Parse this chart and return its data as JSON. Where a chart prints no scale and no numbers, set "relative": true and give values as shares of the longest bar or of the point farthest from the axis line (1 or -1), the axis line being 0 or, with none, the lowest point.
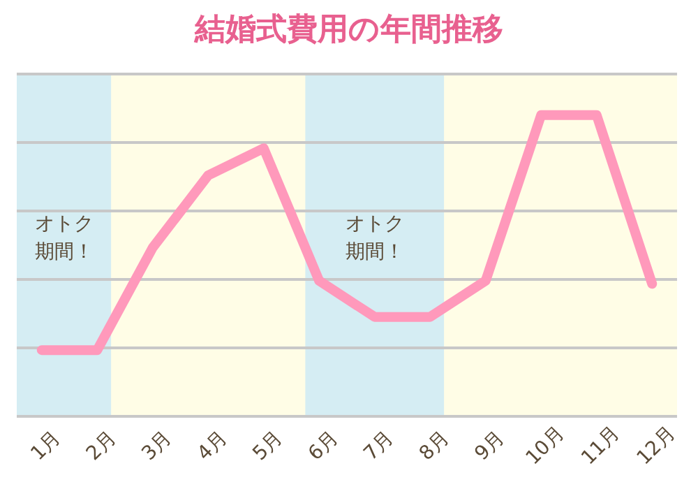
{
  "chart_data": {
    "type": "line",
    "title": "結婚式費用の年間推移",
    "categories": [
      "1月",
      "2月",
      "3月",
      "4月",
      "5月",
      "6月",
      "7月",
      "8月",
      "9月",
      "10月",
      "11月",
      "12月"
    ],
    "relative": true,
    "series": [
      {
        "color": "#ff99bb",
        "values": [
          0.22,
          0.22,
          0.56,
          0.8,
          0.89,
          0.45,
          0.33,
          0.33,
          0.45,
          1,
          1,
          0.44
        ]
      }
    ],
    "bands": [
      {
        "axis": "x",
        "from": "1月",
        "to": "2月",
        "label": "オトク期間！",
        "color": "#d5edf3"
      },
      {
        "axis": "x",
        "from": "6月",
        "to": "8月",
        "label": "オトク期間！",
        "color": "#d5edf3"
      }
    ],
    "grid": "y",
    "marker": "none",
    "line_style": "solid"
  }
}
